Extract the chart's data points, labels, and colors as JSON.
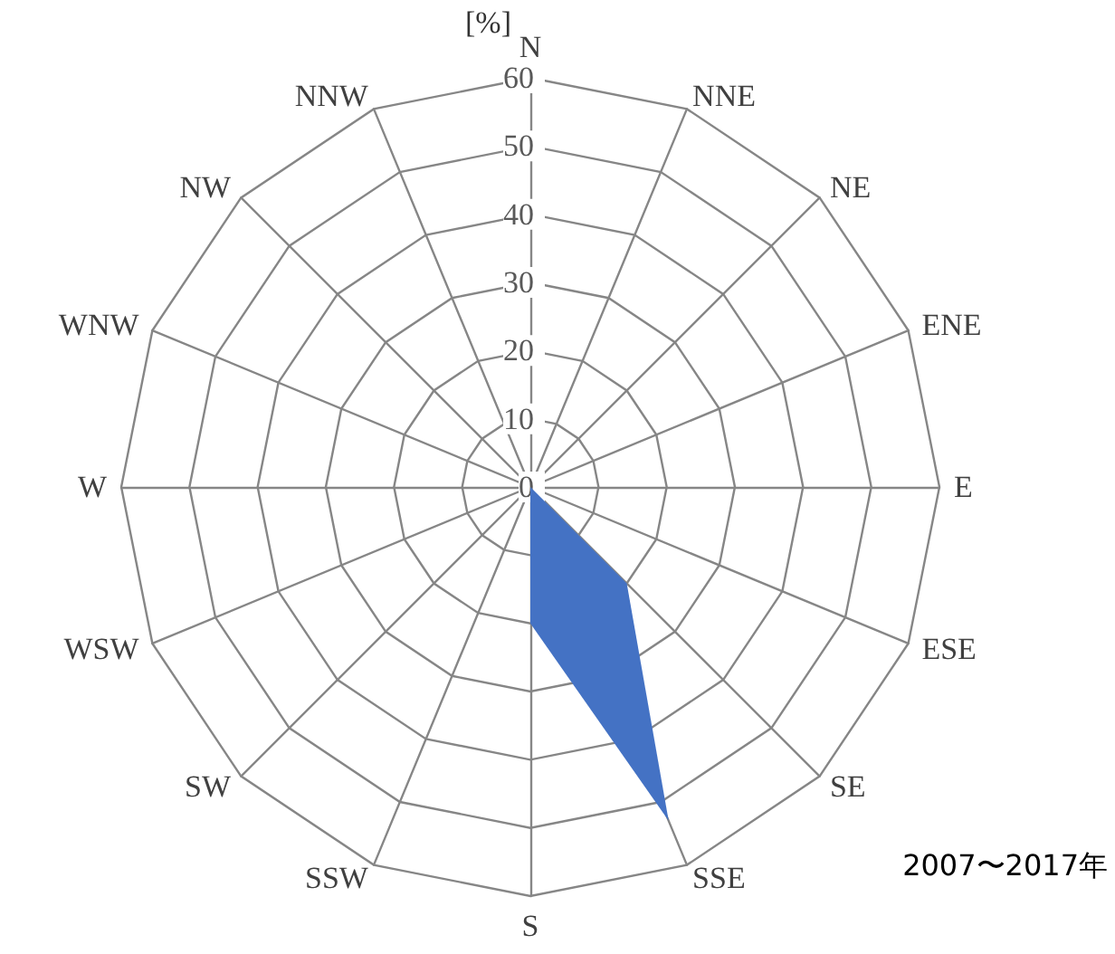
{
  "chart_data": {
    "type": "radar",
    "ylabel": "[%]",
    "categories": [
      "N",
      "NNE",
      "NE",
      "ENE",
      "E",
      "ESE",
      "SE",
      "SSE",
      "S",
      "SSW",
      "SW",
      "WSW",
      "W",
      "WNW",
      "NW",
      "NNW"
    ],
    "series": [
      {
        "color": "#4472c4",
        "values": [
          0,
          0,
          0,
          0,
          0,
          0,
          20,
          53,
          20,
          0,
          0,
          0,
          0,
          0,
          0,
          0
        ]
      }
    ],
    "ylim": [
      0,
      60
    ],
    "yticks": [
      0,
      10,
      20,
      30,
      40,
      50,
      60
    ],
    "annotations": [
      "2007〜2017年"
    ]
  }
}
